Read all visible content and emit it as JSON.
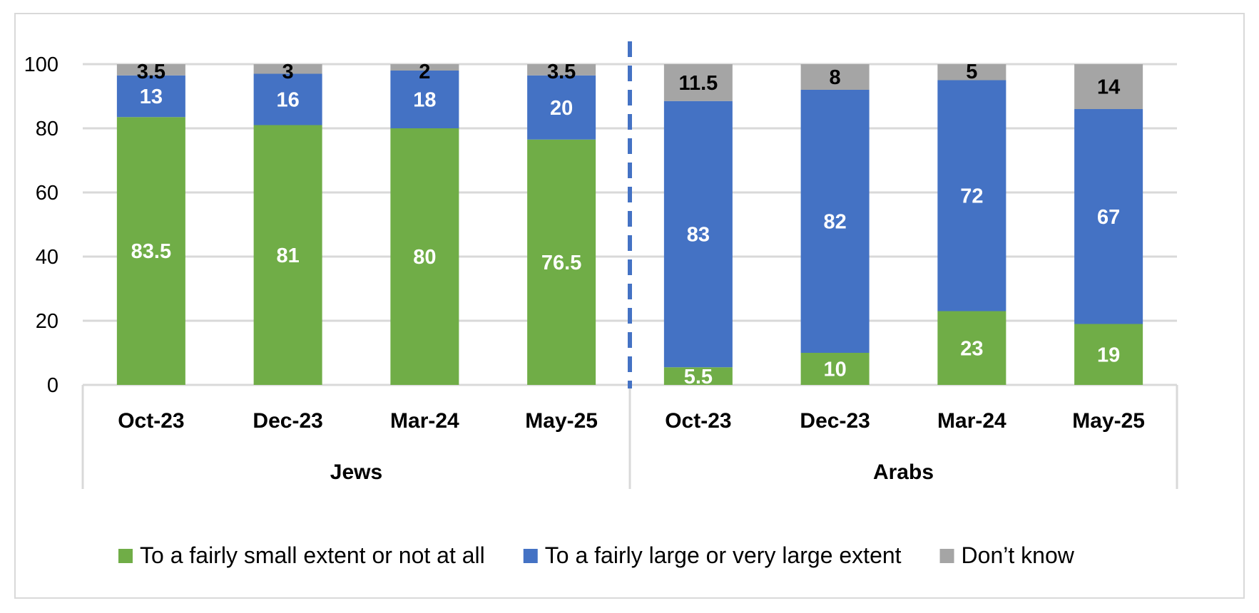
{
  "chart_data": {
    "type": "bar",
    "stacked": true,
    "title": "",
    "xlabel": "",
    "ylabel": "",
    "ylim": [
      0,
      100
    ],
    "yticks": [
      "0",
      "20",
      "40",
      "60",
      "80",
      "100"
    ],
    "grid": true,
    "legend_position": "bottom",
    "groups": [
      "Jews",
      "Arabs"
    ],
    "categories": [
      "Oct-23",
      "Dec-23",
      "Mar-24",
      "May-25",
      "Oct-23",
      "Dec-23",
      "Mar-24",
      "May-25"
    ],
    "category_group": [
      0,
      0,
      0,
      0,
      1,
      1,
      1,
      1
    ],
    "series": [
      {
        "name": "To a fairly small extent or not at all",
        "color": "#70ad47",
        "label_color": "#ffffff",
        "values": [
          83.5,
          81,
          80,
          76.5,
          5.5,
          10,
          23,
          19
        ],
        "labels": [
          "83.5",
          "81",
          "80",
          "76.5",
          "5.5",
          "10",
          "23",
          "19"
        ]
      },
      {
        "name": "To a fairly large or very large extent",
        "color": "#4472c4",
        "label_color": "#ffffff",
        "values": [
          13,
          16,
          18,
          20,
          83,
          82,
          72,
          67
        ],
        "labels": [
          "13",
          "16",
          "18",
          "20",
          "83",
          "82",
          "72",
          "67"
        ]
      },
      {
        "name": "Don’t know",
        "color": "#a5a5a5",
        "label_color": "#000000",
        "values": [
          3.5,
          3,
          2,
          3.5,
          11.5,
          8,
          5,
          14
        ],
        "labels": [
          "3.5",
          "3",
          "2",
          "3.5",
          "11.5",
          "8",
          "5",
          "14"
        ]
      }
    ],
    "group_divider": {
      "style": "dashed",
      "color": "#4472c4"
    }
  }
}
